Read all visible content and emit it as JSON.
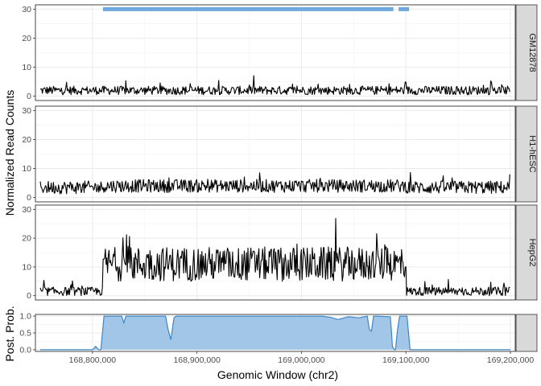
{
  "chart_data": {
    "type": "line",
    "xlabel": "Genomic Window (chr2)",
    "ylabel": "Normalized Read Counts",
    "post_ylabel": "Post. Prob.",
    "xlim": [
      168750000,
      169200000
    ],
    "x_ticks": [
      168800000,
      168900000,
      169000000,
      169100000,
      169200000
    ],
    "x_tick_labels": [
      "168,800,000",
      "168,900,000",
      "169,000,000",
      "169,100,000",
      "169,200,000"
    ],
    "ylim": [
      0,
      30
    ],
    "y_ticks": [
      0,
      10,
      20,
      30
    ],
    "y_tick_labels": [
      "0",
      "10",
      "20",
      "30"
    ],
    "post_ylim": [
      0,
      1
    ],
    "post_y_ticks": [
      0,
      0.5,
      1
    ],
    "post_y_tick_labels": [
      "0.0",
      "0.5",
      "1.0"
    ],
    "grid": true,
    "colors": {
      "line": "#000000",
      "bar": "#6fa8dc",
      "area_fill": "#9dc3e6",
      "area_line": "#3d85c6",
      "strip_bg": "#d9d9d9"
    },
    "enriched_bars": [
      {
        "start": 168810000,
        "end": 169088000
      },
      {
        "start": 169093000,
        "end": 169103000
      }
    ],
    "series": [
      {
        "name": "GM12878",
        "baseline": 2,
        "noise": 3.0,
        "enriched_mean": 2,
        "region": [
          168810000,
          169100000
        ]
      },
      {
        "name": "H1-hESC",
        "baseline": 3.5,
        "noise": 4.5,
        "enriched_mean": 4,
        "region": [
          168810000,
          169100000
        ]
      },
      {
        "name": "HepG2",
        "baseline": 1.5,
        "noise": 3.0,
        "enriched_mean": 11,
        "region": [
          168810000,
          169100000
        ]
      }
    ],
    "posterior": {
      "x": [
        168750000,
        168800000,
        168803000,
        168806000,
        168808000,
        168811000,
        168820000,
        168828000,
        168830000,
        168832000,
        168870000,
        168872000,
        168875000,
        168878000,
        168880000,
        169020000,
        169028000,
        169035000,
        169045000,
        169055000,
        169063000,
        169065000,
        169067000,
        169069000,
        169072000,
        169085000,
        169086000,
        169087000,
        169089000,
        169090000,
        169092000,
        169094000,
        169096000,
        169101000,
        169104000,
        169200000
      ],
      "y": [
        0.0,
        0.0,
        0.1,
        0.0,
        0.0,
        1.0,
        1.0,
        1.0,
        0.8,
        1.0,
        1.0,
        0.65,
        0.3,
        0.95,
        1.0,
        1.0,
        0.96,
        0.9,
        0.98,
        0.95,
        1.0,
        0.6,
        0.55,
        1.0,
        1.0,
        0.98,
        0.6,
        0.1,
        0.0,
        0.0,
        0.6,
        1.0,
        1.0,
        1.0,
        0.0,
        0.0
      ]
    }
  }
}
